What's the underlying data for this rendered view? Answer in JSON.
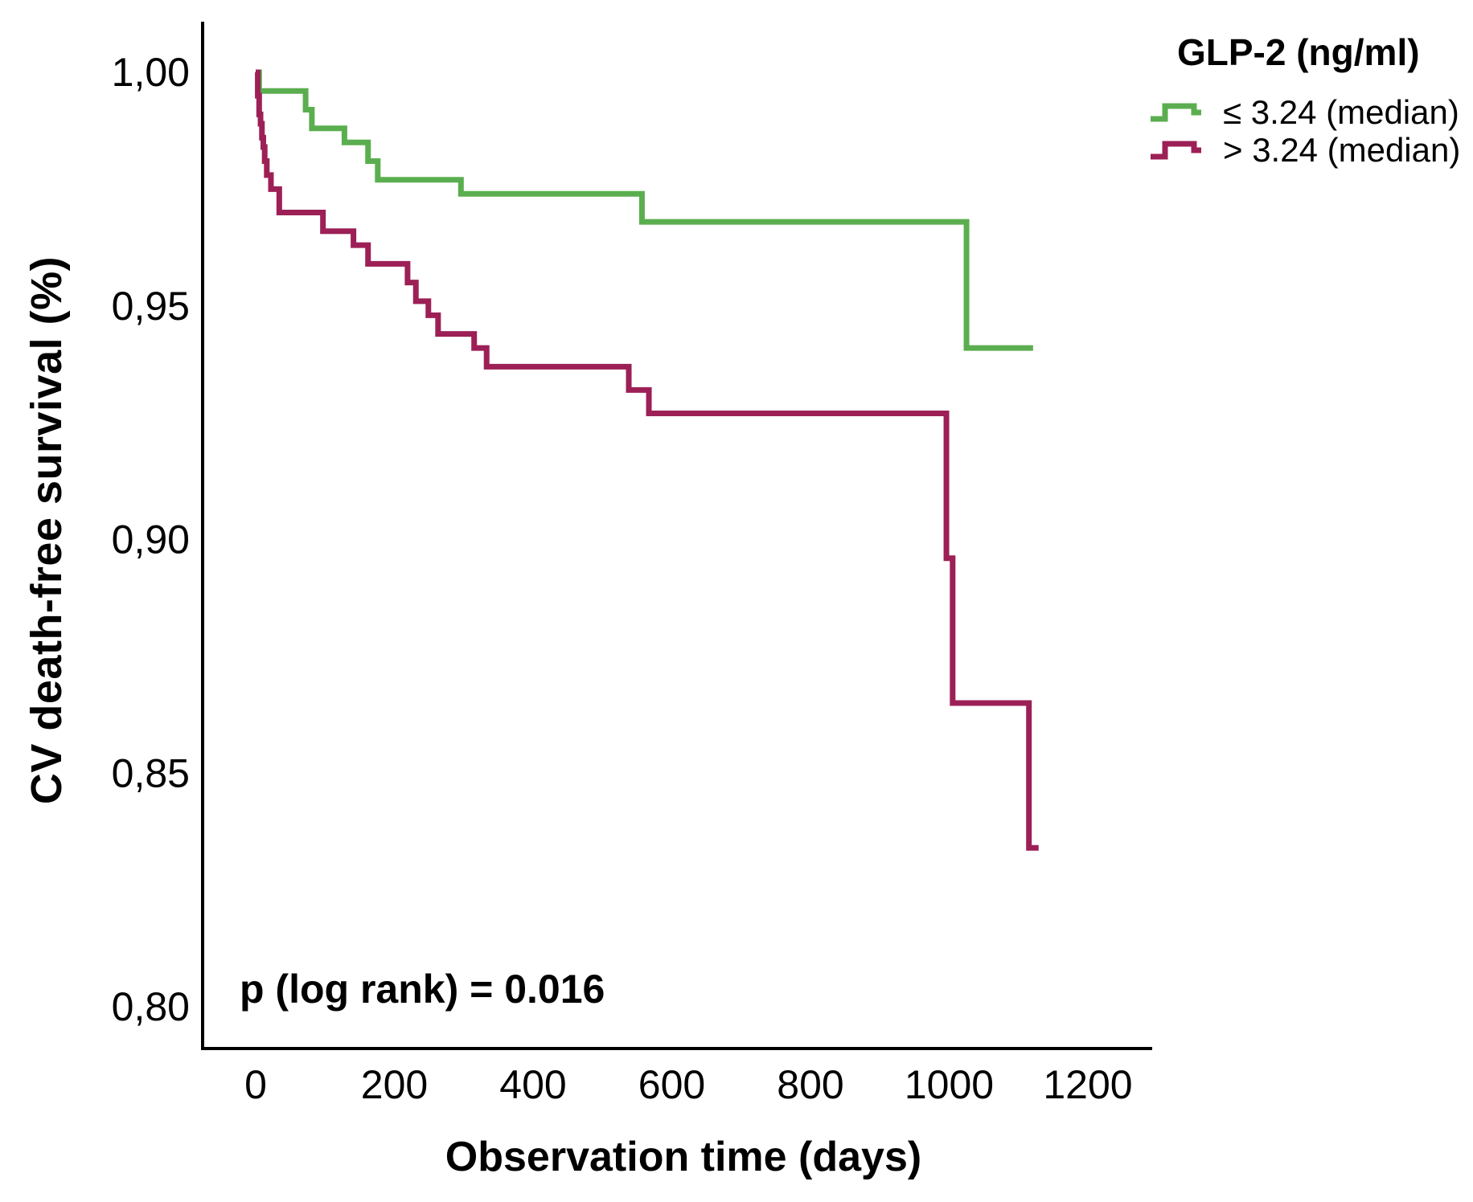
{
  "chart_data": {
    "type": "line",
    "subtype": "kaplan_meier_step_plot",
    "xlabel": "Observation time (days)",
    "ylabel": "CV death-free survival (%)",
    "annotation": "p (log rank) = 0.016",
    "grid": false,
    "legend_position": "top-right",
    "axis_color": "#000000",
    "xlim": [
      0,
      1290
    ],
    "ylim": [
      0.79,
      1.01
    ],
    "x_ticks": [
      {
        "label": "0",
        "value": 0
      },
      {
        "label": "200",
        "value": 200
      },
      {
        "label": "400",
        "value": 400
      },
      {
        "label": "600",
        "value": 600
      },
      {
        "label": "800",
        "value": 800
      },
      {
        "label": "1000",
        "value": 1000
      },
      {
        "label": "1200",
        "value": 1200
      }
    ],
    "y_ticks": [
      {
        "label": "1,00",
        "value": 1.0
      },
      {
        "label": "0,95",
        "value": 0.95
      },
      {
        "label": "0,90",
        "value": 0.9
      },
      {
        "label": "0,85",
        "value": 0.85
      },
      {
        "label": "0,80",
        "value": 0.8
      }
    ],
    "legend": {
      "title": "GLP-2 (ng/ml)",
      "entries": [
        {
          "label": "≤ 3.24 (median)",
          "color": "#5BAE4F"
        },
        {
          "label": "> 3.24 (median)",
          "color": "#9C2056"
        }
      ]
    },
    "series": [
      {
        "name": "≤ 3.24 (median)",
        "color": "#5BAE4F",
        "steps": [
          [
            0,
            1.0
          ],
          [
            5,
            0.996
          ],
          [
            72,
            0.992
          ],
          [
            81,
            0.988
          ],
          [
            128,
            0.985
          ],
          [
            162,
            0.981
          ],
          [
            176,
            0.977
          ],
          [
            296,
            0.974
          ],
          [
            557,
            0.968
          ],
          [
            1025,
            0.941
          ]
        ],
        "end_day": 1121
      },
      {
        "name": "> 3.24 (median)",
        "color": "#9C2056",
        "steps": [
          [
            0,
            1.0
          ],
          [
            3,
            0.995
          ],
          [
            5,
            0.991
          ],
          [
            7,
            0.989
          ],
          [
            9,
            0.986
          ],
          [
            11,
            0.984
          ],
          [
            13,
            0.981
          ],
          [
            16,
            0.978
          ],
          [
            22,
            0.975
          ],
          [
            34,
            0.97
          ],
          [
            97,
            0.966
          ],
          [
            141,
            0.963
          ],
          [
            162,
            0.959
          ],
          [
            219,
            0.955
          ],
          [
            231,
            0.951
          ],
          [
            249,
            0.948
          ],
          [
            263,
            0.944
          ],
          [
            315,
            0.941
          ],
          [
            333,
            0.937
          ],
          [
            538,
            0.932
          ],
          [
            567,
            0.927
          ],
          [
            996,
            0.896
          ],
          [
            1005,
            0.865
          ],
          [
            1115,
            0.834
          ]
        ],
        "end_day": 1129
      }
    ]
  }
}
